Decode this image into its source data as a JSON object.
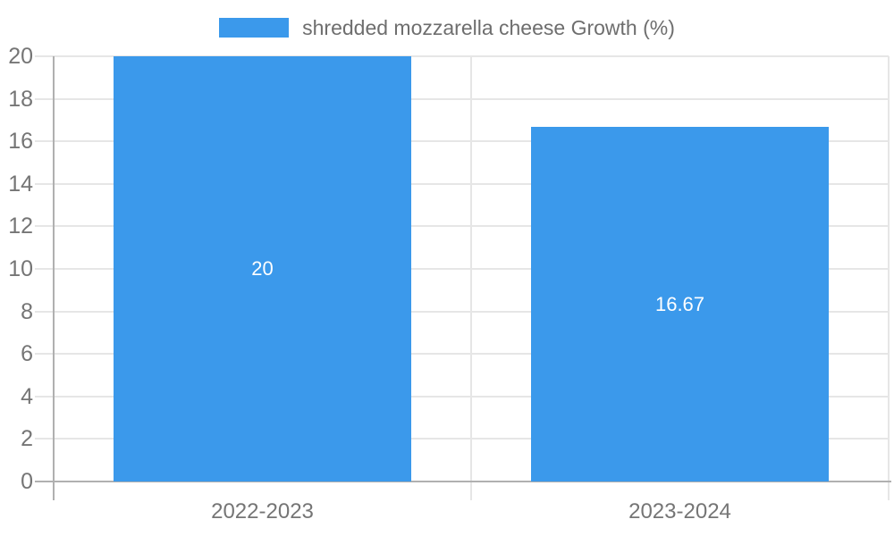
{
  "legend": {
    "label": "shredded mozzarella cheese Growth (%)"
  },
  "chart_data": {
    "type": "bar",
    "title": "",
    "categories": [
      "2022-2023",
      "2023-2024"
    ],
    "series": [
      {
        "name": "shredded mozzarella cheese Growth (%)",
        "values": [
          20,
          16.67
        ]
      }
    ],
    "value_labels": [
      "20",
      "16.67"
    ],
    "xlabel": "",
    "ylabel": "",
    "ylim": [
      0,
      20
    ],
    "ytick_step": 2,
    "yticks": [
      0,
      2,
      4,
      6,
      8,
      10,
      12,
      14,
      16,
      18,
      20
    ],
    "grid": "horizontal gridlines with left tick overhang, category boundary verticals",
    "legend_position": "top-center",
    "colors": {
      "bar": "#3b99eb",
      "grid_line": "#e6e6e6",
      "axis_line": "#b0b0b0",
      "tick_text": "#757575",
      "legend_text": "#6e6e6e",
      "bar_value_text": "#ffffff",
      "background": "#ffffff"
    }
  }
}
